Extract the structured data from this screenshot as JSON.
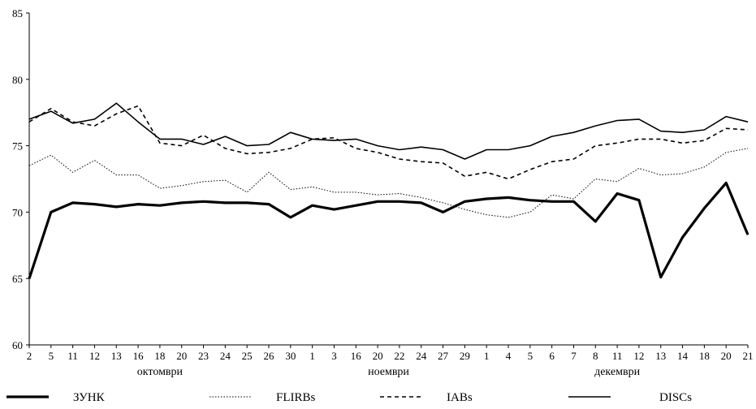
{
  "chart_data": {
    "type": "line",
    "title": "",
    "xlabel": "",
    "ylabel": "",
    "ylim": [
      60,
      85
    ],
    "yticks": [
      60,
      65,
      70,
      75,
      80,
      85
    ],
    "grid": false,
    "legend_position": "bottom",
    "x": [
      "2",
      "5",
      "11",
      "12",
      "13",
      "16",
      "18",
      "20",
      "23",
      "24",
      "25",
      "26",
      "30",
      "1",
      "3",
      "16",
      "20",
      "22",
      "24",
      "27",
      "29",
      "1",
      "4",
      "5",
      "6",
      "7",
      "8",
      "11",
      "12",
      "13",
      "14",
      "18",
      "20",
      "21"
    ],
    "month_labels": [
      {
        "label": "октомври",
        "from_index": 0,
        "to_index": 12
      },
      {
        "label": "ноември",
        "from_index": 13,
        "to_index": 20
      },
      {
        "label": "декември",
        "from_index": 21,
        "to_index": 33
      }
    ],
    "series": [
      {
        "name": "ЗУНК",
        "style": "thick-solid",
        "color": "#000000",
        "values": [
          65.0,
          70.0,
          70.7,
          70.6,
          70.4,
          70.6,
          70.5,
          70.7,
          70.8,
          70.7,
          70.7,
          70.6,
          69.6,
          70.5,
          70.2,
          70.5,
          70.8,
          70.8,
          70.7,
          70.0,
          70.8,
          71.0,
          71.1,
          70.9,
          70.8,
          70.8,
          69.3,
          71.4,
          70.9,
          65.1,
          68.1,
          70.3,
          72.2,
          68.3
        ]
      },
      {
        "name": "FLIRBs",
        "style": "dotted",
        "color": "#000000",
        "values": [
          73.5,
          74.3,
          73.0,
          73.9,
          72.8,
          72.8,
          71.8,
          72.0,
          72.3,
          72.4,
          71.5,
          73.0,
          71.7,
          71.9,
          71.5,
          71.5,
          71.3,
          71.4,
          71.1,
          70.7,
          70.2,
          69.8,
          69.6,
          70.0,
          71.3,
          71.0,
          72.5,
          72.3,
          73.3,
          72.8,
          72.9,
          73.4,
          74.5,
          74.8
        ]
      },
      {
        "name": "IABs",
        "style": "dashed",
        "color": "#000000",
        "values": [
          76.8,
          77.8,
          76.8,
          76.5,
          77.4,
          78.0,
          75.2,
          75.0,
          75.8,
          74.8,
          74.4,
          74.5,
          74.8,
          75.5,
          75.6,
          74.8,
          74.5,
          74.0,
          73.8,
          73.7,
          72.7,
          73.0,
          72.5,
          73.2,
          73.8,
          74.0,
          75.0,
          75.2,
          75.5,
          75.5,
          75.2,
          75.4,
          76.3,
          76.2
        ]
      },
      {
        "name": "DISCs",
        "style": "solid",
        "color": "#000000",
        "values": [
          77.0,
          77.6,
          76.7,
          77.0,
          78.2,
          76.8,
          75.5,
          75.5,
          75.1,
          75.7,
          75.0,
          75.1,
          76.0,
          75.5,
          75.4,
          75.5,
          75.0,
          74.7,
          74.9,
          74.7,
          74.0,
          74.7,
          74.7,
          75.0,
          75.7,
          76.0,
          76.5,
          76.9,
          77.0,
          76.1,
          76.0,
          76.2,
          77.2,
          76.8
        ]
      }
    ]
  }
}
